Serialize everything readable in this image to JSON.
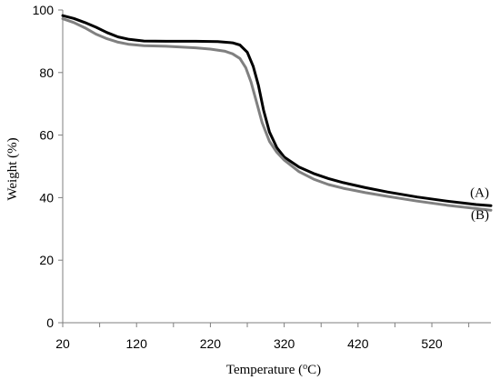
{
  "chart_data": {
    "type": "line",
    "title": "",
    "xlabel": "Temperature (",
    "xlabel_sup": "o",
    "xlabel_tail": "C)",
    "ylabel": "Weight (%)",
    "xlim": [
      20,
      600
    ],
    "ylim": [
      0,
      100
    ],
    "xticks": [
      20,
      120,
      220,
      320,
      420,
      520
    ],
    "yticks": [
      0,
      20,
      40,
      60,
      80,
      100
    ],
    "grid": false,
    "legend": "none",
    "series": [
      {
        "name": "(A)",
        "color": "#000000",
        "x": [
          20,
          35,
          50,
          65,
          80,
          95,
          110,
          130,
          160,
          200,
          230,
          250,
          260,
          270,
          278,
          285,
          292,
          300,
          310,
          320,
          340,
          360,
          380,
          400,
          430,
          460,
          500,
          540,
          580,
          600
        ],
        "y": [
          98.2,
          97.3,
          96.0,
          94.5,
          92.8,
          91.4,
          90.6,
          90.1,
          90.0,
          90.0,
          89.9,
          89.5,
          88.8,
          86.5,
          82.0,
          76.0,
          68.0,
          61.0,
          56.0,
          53.0,
          49.8,
          47.7,
          46.1,
          44.8,
          43.2,
          41.8,
          40.2,
          38.9,
          37.8,
          37.4
        ]
      },
      {
        "name": "(B)",
        "color": "#808080",
        "x": [
          20,
          35,
          50,
          65,
          80,
          95,
          110,
          130,
          160,
          200,
          220,
          240,
          250,
          260,
          268,
          275,
          282,
          290,
          300,
          310,
          320,
          340,
          360,
          380,
          400,
          430,
          460,
          500,
          540,
          580,
          600
        ],
        "y": [
          97.2,
          96.0,
          94.3,
          92.3,
          90.8,
          89.7,
          89.0,
          88.6,
          88.4,
          87.9,
          87.5,
          86.8,
          86.0,
          84.5,
          81.5,
          77.0,
          71.0,
          64.0,
          58.0,
          54.5,
          52.0,
          48.3,
          45.9,
          44.2,
          43.0,
          41.6,
          40.4,
          38.9,
          37.6,
          36.5,
          36.0
        ]
      }
    ]
  }
}
